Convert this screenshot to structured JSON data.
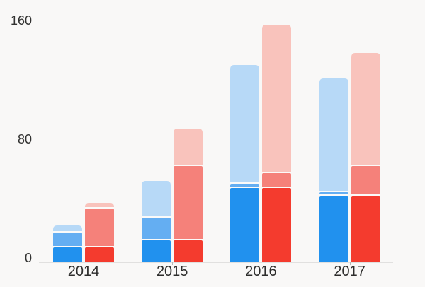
{
  "chart_data": {
    "type": "bar",
    "subtype": "grouped-stacked",
    "title": "",
    "xlabel": "",
    "ylabel": "",
    "categories": [
      "2014",
      "2015",
      "2016",
      "2017"
    ],
    "series": [
      {
        "name": "blue-dark",
        "group": "blue",
        "stack_order": 0,
        "color": "#2191ee",
        "values": [
          10,
          15,
          50,
          45
        ]
      },
      {
        "name": "blue-medium",
        "group": "blue",
        "stack_order": 1,
        "color": "#64aef2",
        "values": [
          10,
          15,
          3,
          2
        ]
      },
      {
        "name": "blue-light",
        "group": "blue",
        "stack_order": 2,
        "color": "#b7d9f7",
        "values": [
          5,
          25,
          80,
          77
        ]
      },
      {
        "name": "red-dark",
        "group": "red",
        "stack_order": 0,
        "color": "#f43b2e",
        "values": [
          10,
          15,
          50,
          45
        ]
      },
      {
        "name": "red-medium",
        "group": "red",
        "stack_order": 1,
        "color": "#f5817a",
        "values": [
          26,
          50,
          10,
          20
        ]
      },
      {
        "name": "red-light",
        "group": "red",
        "stack_order": 2,
        "color": "#f9c3bc",
        "values": [
          4,
          25,
          100,
          76
        ]
      }
    ],
    "stack_totals": {
      "blue": [
        25,
        55,
        133,
        124
      ],
      "red": [
        40,
        90,
        160,
        141
      ]
    },
    "y_axis": {
      "tick_labels": [
        "0",
        "80",
        "160"
      ],
      "ticks": [
        0,
        80,
        160
      ],
      "range": [
        0,
        172
      ]
    },
    "x_axis": {
      "labels": [
        "2014",
        "2015",
        "2016",
        "2017"
      ]
    },
    "grid": true,
    "legend": false,
    "colors": {
      "background": "#f9f8f7",
      "gridline": "#e1e0df",
      "axis_text": "#323231",
      "axis_tick": "#b9b8b7",
      "segment_separator": "#fbfaf9"
    }
  }
}
